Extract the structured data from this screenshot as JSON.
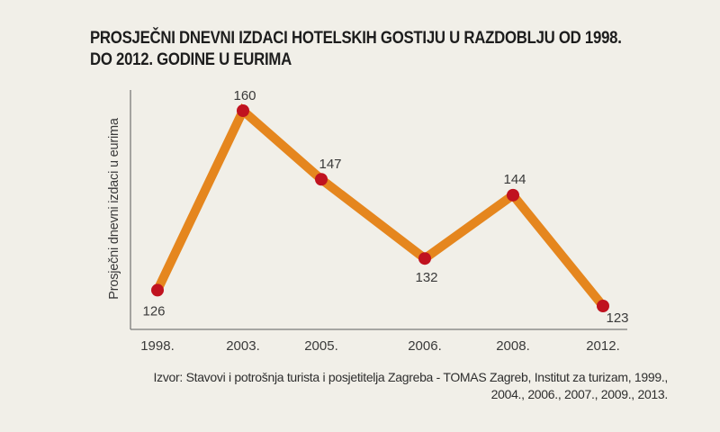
{
  "title": {
    "line1": "PROSJEČNI DNEVNI IZDACI HOTELSKIH GOSTIJU U RAZDOBLJU OD 1998.",
    "line2": "DO 2012. GODINE U EURIMA"
  },
  "source": {
    "line1": "Izvor: Stavovi i potrošnja turista i posjetitelja Zagreba - TOMAS Zagreb, Institut za turizam, 1999.,",
    "line2": "2004., 2006., 2007., 2009., 2013."
  },
  "colors": {
    "background": "#f1efe8",
    "line": "#e5861e",
    "marker": "#c0121f",
    "axis": "#7a7a7a",
    "text": "#2b2b2b"
  },
  "chart_data": {
    "type": "line",
    "title": "PROSJEČNI DNEVNI IZDACI HOTELSKIH GOSTIJU U RAZDOBLJU OD 1998. DO 2012. GODINE U EURIMA",
    "xlabel": "",
    "ylabel": "Prosječni dnevni izdaci u eurima",
    "categories": [
      "1998.",
      "2003.",
      "2005.",
      "2006.",
      "2008.",
      "2012."
    ],
    "series": [
      {
        "name": "Prosječni dnevni izdaci",
        "values": [
          126,
          160,
          147,
          132,
          144,
          123
        ]
      }
    ],
    "data_labels": [
      "126",
      "160",
      "147",
      "132",
      "144",
      "123"
    ],
    "grid": false,
    "legend": "none",
    "annotations": [
      "Izvor: Stavovi i potrošnja turista i posjetitelja Zagreba - TOMAS Zagreb, Institut za turizam, 1999., 2004., 2006., 2007., 2009., 2013."
    ]
  }
}
